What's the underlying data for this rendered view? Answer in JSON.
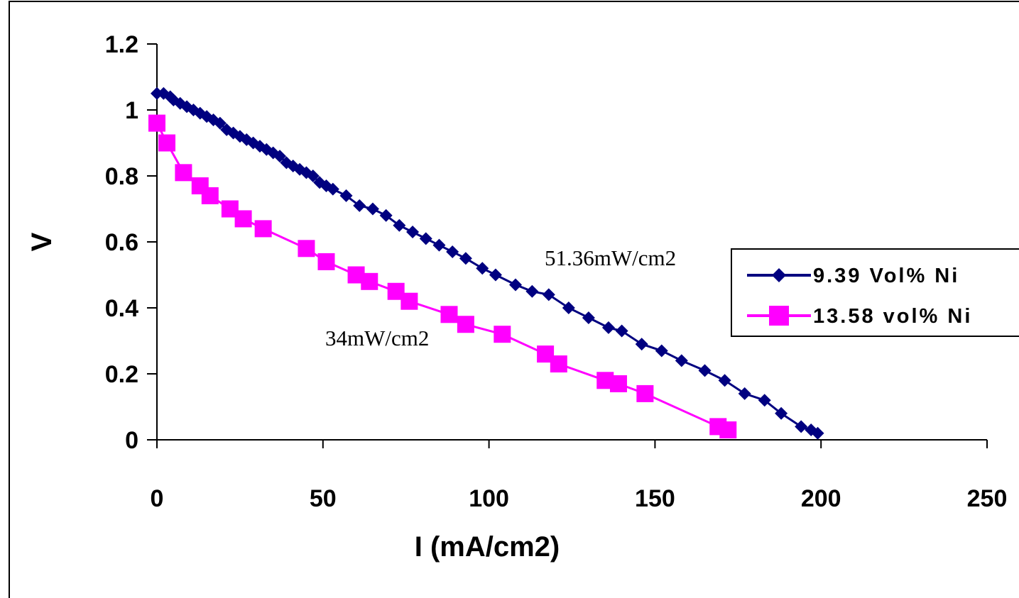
{
  "chart_data": {
    "type": "line",
    "title": "",
    "xlabel": "I (mA/cm2)",
    "ylabel": "V",
    "xlim": [
      0,
      250
    ],
    "ylim": [
      0,
      1.2
    ],
    "xticks": [
      "0",
      "50",
      "100",
      "150",
      "200",
      "250"
    ],
    "yticks": [
      "0",
      "0.2",
      "0.4",
      "0.6",
      "0.8",
      "1",
      "1.2"
    ],
    "grid": false,
    "legend_position": "right",
    "annotations": [
      {
        "text": "51.36mW/cm2",
        "series": 0
      },
      {
        "text": "34mW/cm2",
        "series": 1
      }
    ],
    "series": [
      {
        "name": "9.39 Vol% Ni",
        "color": "#000080",
        "marker": "diamond",
        "x": [
          0,
          2,
          4,
          5,
          7,
          9,
          11,
          13,
          15,
          17,
          19,
          21,
          23,
          25,
          27,
          29,
          31,
          33,
          35,
          37,
          39,
          41,
          43,
          45,
          47,
          49,
          51,
          53,
          57,
          61,
          65,
          69,
          73,
          77,
          81,
          85,
          89,
          93,
          98,
          102,
          108,
          113,
          118,
          124,
          130,
          136,
          140,
          146,
          152,
          158,
          165,
          171,
          177,
          183,
          188,
          194,
          197,
          199
        ],
        "y": [
          1.05,
          1.05,
          1.04,
          1.03,
          1.02,
          1.01,
          1.0,
          0.99,
          0.98,
          0.97,
          0.96,
          0.94,
          0.93,
          0.92,
          0.91,
          0.9,
          0.89,
          0.88,
          0.87,
          0.86,
          0.84,
          0.83,
          0.82,
          0.81,
          0.8,
          0.78,
          0.77,
          0.76,
          0.74,
          0.71,
          0.7,
          0.68,
          0.65,
          0.63,
          0.61,
          0.59,
          0.57,
          0.55,
          0.52,
          0.5,
          0.47,
          0.45,
          0.44,
          0.4,
          0.37,
          0.34,
          0.33,
          0.29,
          0.27,
          0.24,
          0.21,
          0.18,
          0.14,
          0.12,
          0.08,
          0.04,
          0.03,
          0.02
        ]
      },
      {
        "name": "13.58 vol% Ni",
        "color": "#FF00FF",
        "marker": "square",
        "x": [
          0,
          3,
          8,
          13,
          16,
          22,
          26,
          32,
          45,
          51,
          60,
          64,
          72,
          76,
          88,
          93,
          104,
          117,
          121,
          135,
          139,
          147,
          169,
          172
        ],
        "y": [
          0.96,
          0.9,
          0.81,
          0.77,
          0.74,
          0.7,
          0.67,
          0.64,
          0.58,
          0.54,
          0.5,
          0.48,
          0.45,
          0.42,
          0.38,
          0.35,
          0.32,
          0.26,
          0.23,
          0.18,
          0.17,
          0.14,
          0.04,
          0.03
        ]
      }
    ]
  }
}
